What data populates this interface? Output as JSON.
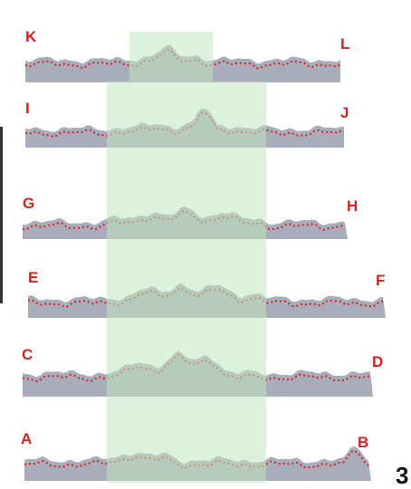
{
  "figure_number": "3",
  "colors": {
    "label": "#d4231f",
    "profile_fill": "#a9acbb",
    "dotted_trace": "#d4231f",
    "highlight": "#bfe8bf"
  },
  "profiles": [
    {
      "id": "KL",
      "start": "K",
      "end": "L"
    },
    {
      "id": "IJ",
      "start": "I",
      "end": "J"
    },
    {
      "id": "GH",
      "start": "G",
      "end": "H"
    },
    {
      "id": "EF",
      "start": "E",
      "end": "F"
    },
    {
      "id": "CD",
      "start": "C",
      "end": "D"
    },
    {
      "id": "AB",
      "start": "A",
      "end": "B"
    }
  ]
}
